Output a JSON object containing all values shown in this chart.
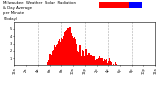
{
  "bar_color": "#ff0000",
  "avg_color": "#0000ff",
  "background_color": "#ffffff",
  "grid_color": "#888888",
  "ylim": [
    0,
    6
  ],
  "xlim": [
    0,
    1440
  ],
  "legend_red": "#ff0000",
  "legend_blue": "#0000ff",
  "tick_fontsize": 2.5,
  "dashed_gridlines": [
    240,
    480,
    720,
    960,
    1200
  ],
  "blue_bar_x": 330,
  "blue_bar_height": 0.18,
  "solar_start": 335,
  "solar_peak": 580,
  "solar_end": 1050,
  "peak_height": 5.5
}
